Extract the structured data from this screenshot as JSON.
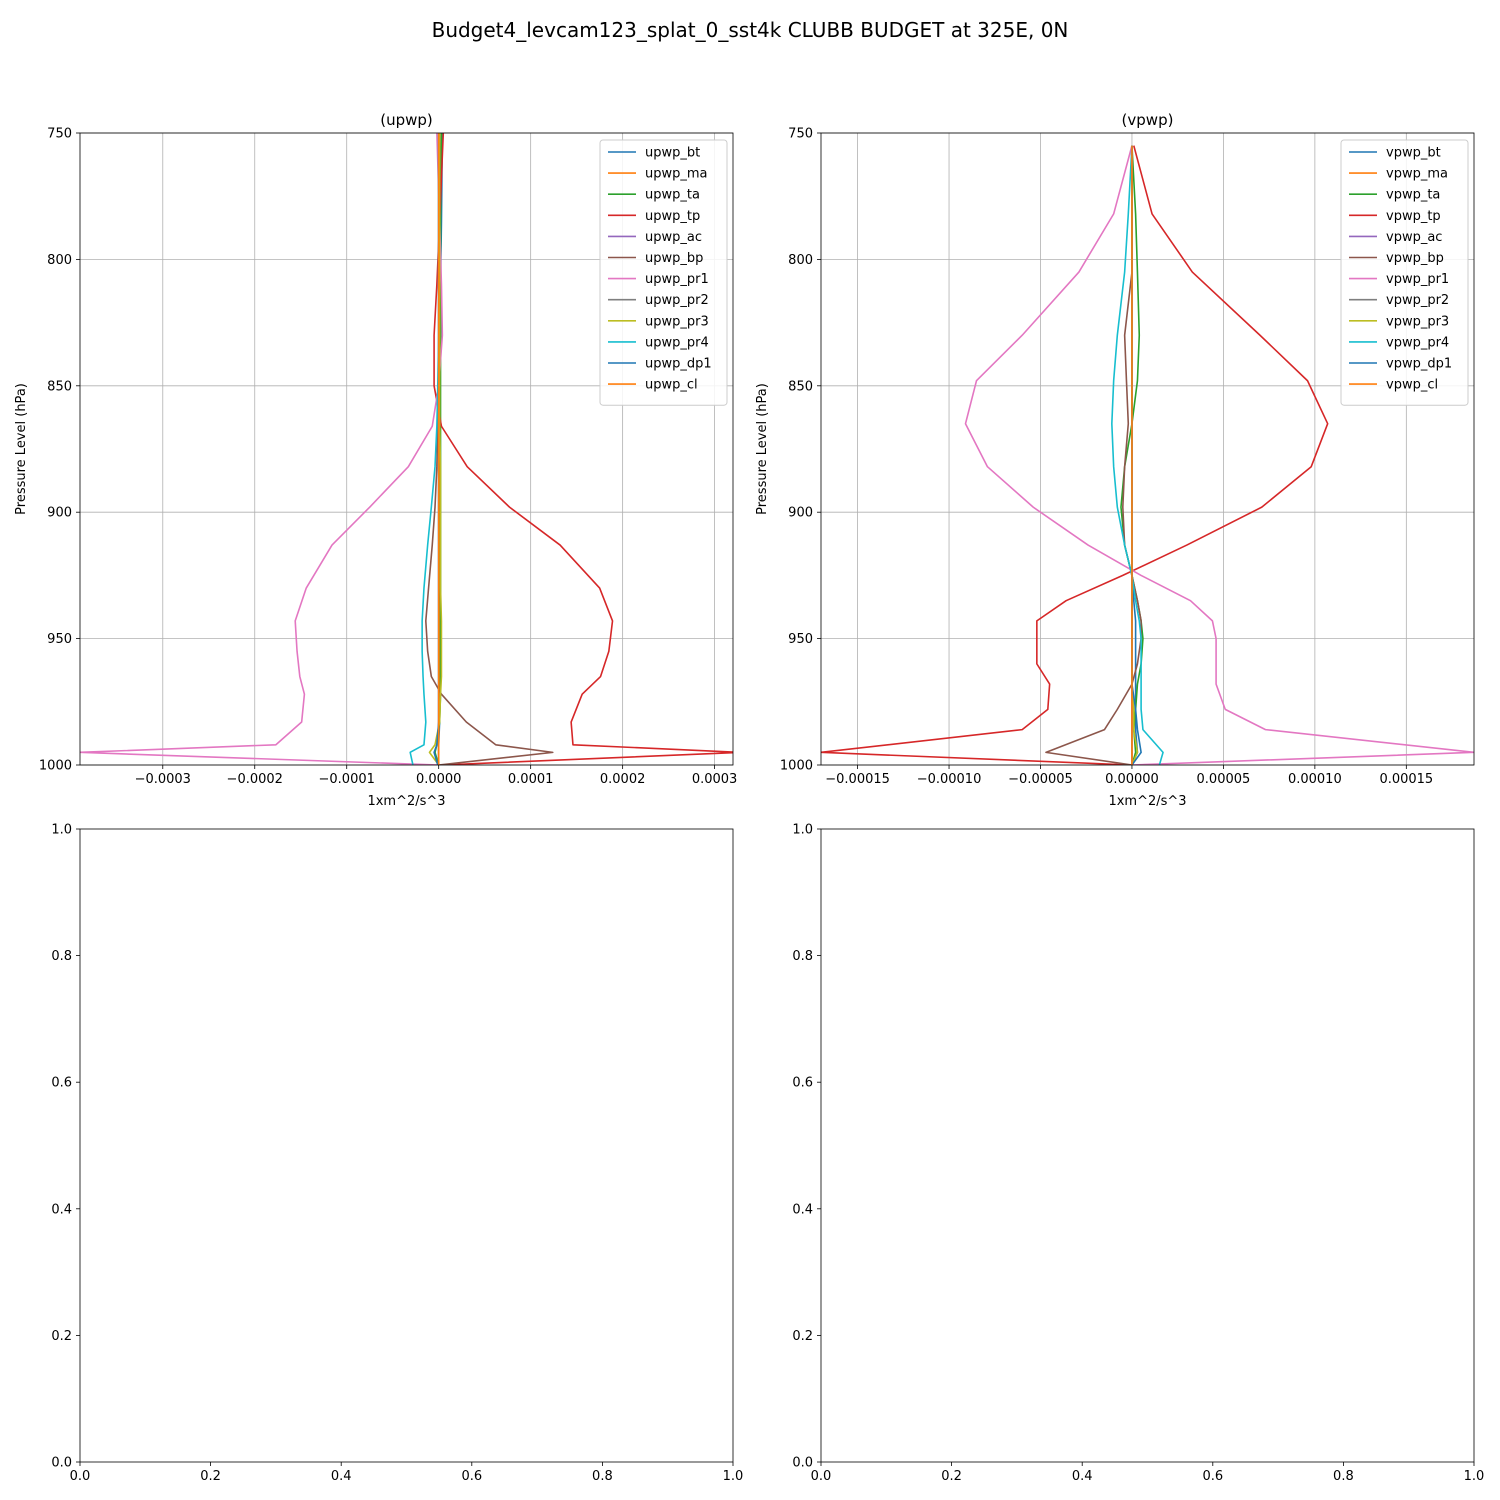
{
  "figure": {
    "suptitle": "Budget4_levcam123_splat_0_sst4k CLUBB BUDGET at 325E, 0N"
  },
  "chart_data": [
    {
      "type": "line",
      "title": "(upwp)",
      "xlabel": "1xm^2/s^3",
      "ylabel": "Pressure Level (hPa)",
      "xlim": [
        -0.00039,
        0.00032
      ],
      "ylim": [
        1000,
        750
      ],
      "y_inverted": true,
      "grid": true,
      "legend_position": "top-right",
      "x_ticks": [
        -0.0003,
        -0.0002,
        -0.0001,
        0.0,
        0.0001,
        0.0002,
        0.0003
      ],
      "x_tick_labels": [
        "−0.0003",
        "−0.0002",
        "−0.0001",
        "0.0000",
        "0.0001",
        "0.0002",
        "0.0003"
      ],
      "y_ticks": [
        750,
        800,
        850,
        900,
        950,
        1000
      ],
      "y_tick_labels": [
        "750",
        "800",
        "850",
        "900",
        "950",
        "1000"
      ],
      "levels": [
        750,
        785,
        810,
        830,
        850,
        866,
        882,
        898,
        913,
        930,
        943,
        955,
        965,
        972,
        983,
        992,
        995,
        1000
      ],
      "series": [
        {
          "name": "upwp_bt",
          "color": "#1f77b4",
          "values": [
            4e-06,
            3e-06,
            2e-06,
            2e-06,
            1e-06,
            1e-06,
            1e-06,
            1e-06,
            1e-06,
            1e-06,
            1e-06,
            1e-06,
            1e-06,
            1e-06,
            1e-06,
            0.0,
            0.0,
            0.0
          ]
        },
        {
          "name": "upwp_ma",
          "color": "#ff7f0e",
          "values": [
            1e-06,
            1e-06,
            1e-06,
            1e-06,
            1e-06,
            1e-06,
            1e-06,
            1e-06,
            1e-06,
            1e-06,
            1e-06,
            1e-06,
            1e-06,
            1e-06,
            0.0,
            0.0,
            0.0,
            0.0
          ]
        },
        {
          "name": "upwp_ta",
          "color": "#2ca02c",
          "values": [
            3e-06,
            2e-06,
            2e-06,
            2e-06,
            2e-06,
            2e-06,
            2e-06,
            2e-06,
            2e-06,
            2e-06,
            2e-06,
            2e-06,
            2e-06,
            2e-06,
            1e-06,
            -2e-06,
            -4e-06,
            0.0
          ]
        },
        {
          "name": "upwp_tp",
          "color": "#d62728",
          "values": [
            5e-06,
            1e-06,
            -2e-06,
            -5e-06,
            -5e-06,
            3e-06,
            3.1e-05,
            7.7e-05,
            0.000132,
            0.000175,
            0.000189,
            0.000185,
            0.000176,
            0.000156,
            0.000144,
            0.000146,
            0.000328,
            3e-06
          ]
        },
        {
          "name": "upwp_ac",
          "color": "#9467bd",
          "values": [
            0.0,
            0.0,
            0.0,
            0.0,
            0.0,
            0.0,
            0.0,
            0.0,
            0.0,
            0.0,
            0.0,
            0.0,
            0.0,
            0.0,
            0.0,
            0.0,
            0.0,
            0.0
          ]
        },
        {
          "name": "upwp_bp",
          "color": "#8c564b",
          "values": [
            1e-06,
            1e-06,
            1e-06,
            1e-06,
            0.0,
            -1e-06,
            -2e-06,
            -4e-06,
            -7e-06,
            -1.1e-05,
            -1.4e-05,
            -1.2e-05,
            -8e-06,
            3e-06,
            3e-05,
            6.2e-05,
            0.000124,
            0.0
          ]
        },
        {
          "name": "upwp_pr1",
          "color": "#e377c2",
          "values": [
            -2e-06,
            1e-06,
            3e-06,
            4e-06,
            0.0,
            -7e-06,
            -3.3e-05,
            -7.5e-05,
            -0.000116,
            -0.000144,
            -0.000156,
            -0.000154,
            -0.000151,
            -0.000146,
            -0.000149,
            -0.000177,
            -0.00039,
            0.0
          ]
        },
        {
          "name": "upwp_pr2",
          "color": "#7f7f7f",
          "values": [
            0.0,
            0.0,
            0.0,
            0.0,
            0.0,
            0.0,
            0.0,
            0.0,
            0.0,
            0.0,
            0.0,
            0.0,
            0.0,
            0.0,
            0.0,
            0.0,
            0.0,
            0.0
          ]
        },
        {
          "name": "upwp_pr3",
          "color": "#bcbd22",
          "values": [
            1e-06,
            1e-06,
            1e-06,
            1e-06,
            1e-06,
            1e-06,
            2e-06,
            2e-06,
            2e-06,
            2e-06,
            3e-06,
            3e-06,
            3e-06,
            2e-06,
            1e-06,
            -4e-06,
            -1e-05,
            0.0
          ]
        },
        {
          "name": "upwp_pr4",
          "color": "#17becf",
          "values": [
            0.0,
            0.0,
            0.0,
            0.0,
            -1e-06,
            -2e-06,
            -4e-06,
            -8e-06,
            -1.2e-05,
            -1.6e-05,
            -1.8e-05,
            -1.8e-05,
            -1.7e-05,
            -1.6e-05,
            -1.4e-05,
            -1.6e-05,
            -3.1e-05,
            -2.8e-05
          ]
        },
        {
          "name": "upwp_dp1",
          "color": "#1f77b4",
          "values": [
            0.0,
            0.0,
            0.0,
            0.0,
            0.0,
            0.0,
            0.0,
            0.0,
            0.0,
            0.0,
            0.0,
            0.0,
            0.0,
            0.0,
            0.0,
            -2e-06,
            -5e-06,
            -1e-06
          ]
        },
        {
          "name": "upwp_cl",
          "color": "#ff7f0e",
          "values": [
            0.0,
            0.0,
            0.0,
            0.0,
            0.0,
            0.0,
            0.0,
            0.0,
            0.0,
            0.0,
            0.0,
            0.0,
            0.0,
            0.0,
            0.0,
            0.0,
            0.0,
            0.0
          ]
        }
      ]
    },
    {
      "type": "line",
      "title": "(vpwp)",
      "xlabel": "1xm^2/s^3",
      "ylabel": "Pressure Level (hPa)",
      "xlim": [
        -0.00017,
        0.000187
      ],
      "ylim": [
        1000,
        750
      ],
      "y_inverted": true,
      "grid": true,
      "legend_position": "top-right",
      "x_ticks": [
        -0.00015,
        -0.0001,
        -5e-05,
        0.0,
        5e-05,
        0.0001,
        0.00015
      ],
      "x_tick_labels": [
        "−0.00015",
        "−0.00010",
        "−0.00005",
        "0.00000",
        "0.00005",
        "0.00010",
        "0.00015"
      ],
      "y_ticks": [
        750,
        800,
        850,
        900,
        950,
        1000
      ],
      "y_tick_labels": [
        "750",
        "800",
        "850",
        "900",
        "950",
        "1000"
      ],
      "levels": [
        755,
        782,
        805,
        830,
        848,
        865,
        882,
        898,
        913,
        925,
        935,
        943,
        950,
        960,
        968,
        978,
        986,
        995,
        1000
      ],
      "series": [
        {
          "name": "vpwp_bt",
          "color": "#1f77b4",
          "values": [
            0.0,
            0.0,
            0.0,
            0.0,
            0.0,
            0.0,
            0.0,
            0.0,
            0.0,
            0.0,
            1e-06,
            2e-06,
            2e-06,
            2e-06,
            2e-06,
            2e-06,
            2e-06,
            3e-06,
            0.0
          ]
        },
        {
          "name": "vpwp_ma",
          "color": "#ff7f0e",
          "values": [
            0.0,
            0.0,
            0.0,
            0.0,
            0.0,
            0.0,
            0.0,
            0.0,
            0.0,
            0.0,
            0.0,
            0.0,
            0.0,
            0.0,
            0.0,
            0.0,
            0.0,
            0.0,
            0.0
          ]
        },
        {
          "name": "vpwp_ta",
          "color": "#2ca02c",
          "values": [
            0.0,
            2e-06,
            3e-06,
            4e-06,
            3e-06,
            0.0,
            -4e-06,
            -6e-06,
            -4e-06,
            0.0,
            3e-06,
            5e-06,
            6e-06,
            5e-06,
            3e-06,
            2e-06,
            1e-06,
            2e-06,
            0.0
          ]
        },
        {
          "name": "vpwp_tp",
          "color": "#d62728",
          "values": [
            1e-06,
            1.1e-05,
            3.3e-05,
            7e-05,
            9.6e-05,
            0.000107,
            9.8e-05,
            7.1e-05,
            3e-05,
            -5e-06,
            -3.6e-05,
            -5.2e-05,
            -5.2e-05,
            -5.2e-05,
            -4.5e-05,
            -4.6e-05,
            -6e-05,
            -0.00017,
            0.0
          ]
        },
        {
          "name": "vpwp_ac",
          "color": "#9467bd",
          "values": [
            0.0,
            0.0,
            0.0,
            0.0,
            0.0,
            0.0,
            0.0,
            0.0,
            0.0,
            0.0,
            0.0,
            0.0,
            0.0,
            0.0,
            0.0,
            0.0,
            0.0,
            0.0,
            0.0
          ]
        },
        {
          "name": "vpwp_bp",
          "color": "#8c564b",
          "values": [
            0.0,
            0.0,
            0.0,
            -4e-06,
            -3e-06,
            -2e-06,
            -4e-06,
            -5e-06,
            -4e-06,
            0.0,
            3e-06,
            5e-06,
            5e-06,
            3e-06,
            0.0,
            -8e-06,
            -1.5e-05,
            -4.7e-05,
            0.0
          ]
        },
        {
          "name": "vpwp_pr1",
          "color": "#e377c2",
          "values": [
            0.0,
            -1e-05,
            -2.9e-05,
            -6e-05,
            -8.5e-05,
            -9.1e-05,
            -7.9e-05,
            -5.4e-05,
            -2.4e-05,
            5e-06,
            3.2e-05,
            4.4e-05,
            4.6e-05,
            4.6e-05,
            4.6e-05,
            5.1e-05,
            7.3e-05,
            0.000187,
            0.0
          ]
        },
        {
          "name": "vpwp_pr2",
          "color": "#7f7f7f",
          "values": [
            0.0,
            0.0,
            0.0,
            0.0,
            0.0,
            0.0,
            0.0,
            0.0,
            0.0,
            0.0,
            0.0,
            0.0,
            0.0,
            0.0,
            0.0,
            0.0,
            0.0,
            0.0,
            0.0
          ]
        },
        {
          "name": "vpwp_pr3",
          "color": "#bcbd22",
          "values": [
            0.0,
            0.0,
            0.0,
            0.0,
            0.0,
            0.0,
            0.0,
            0.0,
            0.0,
            0.0,
            0.0,
            0.0,
            0.0,
            0.0,
            0.0,
            1e-06,
            1e-06,
            3e-06,
            0.0
          ]
        },
        {
          "name": "vpwp_pr4",
          "color": "#17becf",
          "values": [
            0.0,
            -2e-06,
            -4e-06,
            -8e-06,
            -1e-05,
            -1.1e-05,
            -1e-05,
            -8e-06,
            -4e-06,
            0.0,
            2e-06,
            4e-06,
            5e-06,
            5e-06,
            5e-06,
            5e-06,
            6e-06,
            1.7e-05,
            1.5e-05
          ]
        },
        {
          "name": "vpwp_dp1",
          "color": "#1f77b4",
          "values": [
            0.0,
            0.0,
            0.0,
            0.0,
            0.0,
            0.0,
            0.0,
            0.0,
            0.0,
            0.0,
            0.0,
            0.0,
            0.0,
            0.0,
            0.0,
            2e-06,
            3e-06,
            5e-06,
            0.0
          ]
        },
        {
          "name": "vpwp_cl",
          "color": "#ff7f0e",
          "values": [
            0.0,
            0.0,
            0.0,
            0.0,
            0.0,
            0.0,
            0.0,
            0.0,
            0.0,
            0.0,
            0.0,
            0.0,
            0.0,
            0.0,
            0.0,
            0.0,
            0.0,
            0.0,
            0.0
          ]
        }
      ]
    },
    {
      "type": "line",
      "title": "",
      "xlim": [
        0.0,
        1.0
      ],
      "ylim": [
        0.0,
        1.0
      ],
      "grid": false,
      "x_ticks": [
        0.0,
        0.2,
        0.4,
        0.6,
        0.8,
        1.0
      ],
      "x_tick_labels": [
        "0.0",
        "0.2",
        "0.4",
        "0.6",
        "0.8",
        "1.0"
      ],
      "y_ticks": [
        0.0,
        0.2,
        0.4,
        0.6,
        0.8,
        1.0
      ],
      "y_tick_labels": [
        "0.0",
        "0.2",
        "0.4",
        "0.6",
        "0.8",
        "1.0"
      ],
      "series": []
    },
    {
      "type": "line",
      "title": "",
      "xlim": [
        0.0,
        1.0
      ],
      "ylim": [
        0.0,
        1.0
      ],
      "grid": false,
      "x_ticks": [
        0.0,
        0.2,
        0.4,
        0.6,
        0.8,
        1.0
      ],
      "x_tick_labels": [
        "0.0",
        "0.2",
        "0.4",
        "0.6",
        "0.8",
        "1.0"
      ],
      "y_ticks": [
        0.0,
        0.2,
        0.4,
        0.6,
        0.8,
        1.0
      ],
      "y_tick_labels": [
        "0.0",
        "0.2",
        "0.4",
        "0.6",
        "0.8",
        "1.0"
      ],
      "series": []
    }
  ]
}
